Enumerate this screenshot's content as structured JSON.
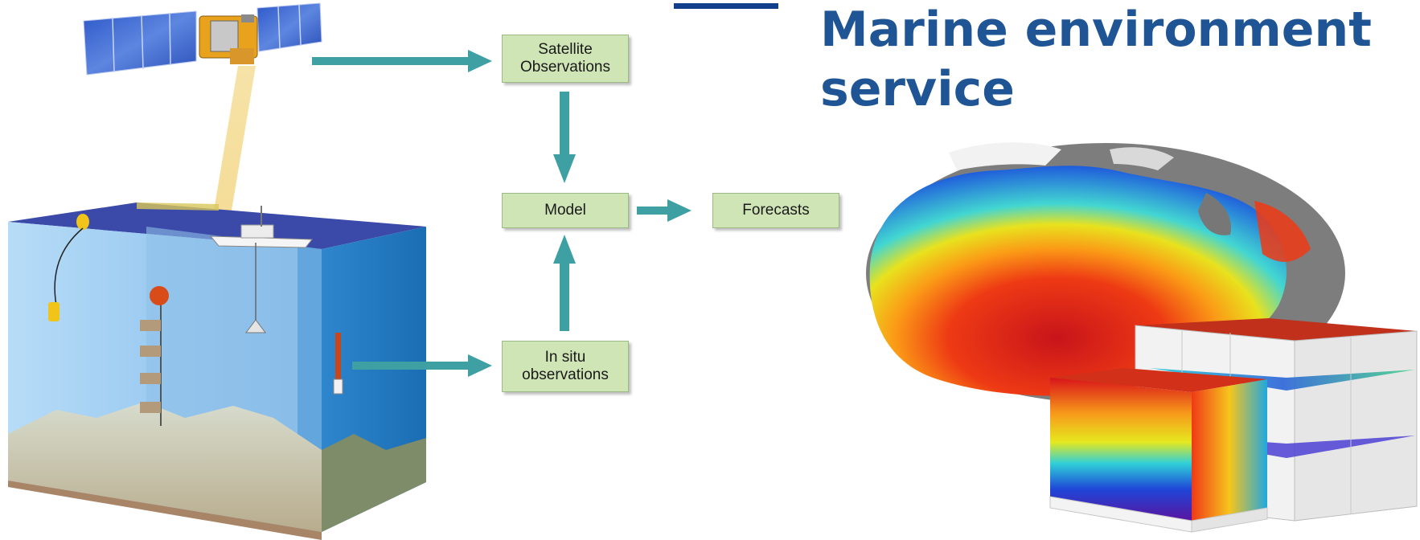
{
  "title": {
    "line1": "Marine environment",
    "line2": "service"
  },
  "flow": {
    "satellite": "Satellite\nObservations",
    "model": "Model",
    "forecasts": "Forecasts",
    "insitu": "In situ\nobservations"
  },
  "colors": {
    "title": "#1f5595",
    "arrow": "#3fa0a4",
    "box_fill": "#cfe5b6",
    "ocean_top": "#3b4aa8",
    "ocean_side": "#78b3e6",
    "land": "#8a8a8a"
  },
  "icons": {
    "satellite": "satellite-icon",
    "ship": "ship-icon",
    "buoy": "buoy-icon",
    "globe": "ocean-temperature-globe",
    "cube": "ocean-model-cube"
  }
}
